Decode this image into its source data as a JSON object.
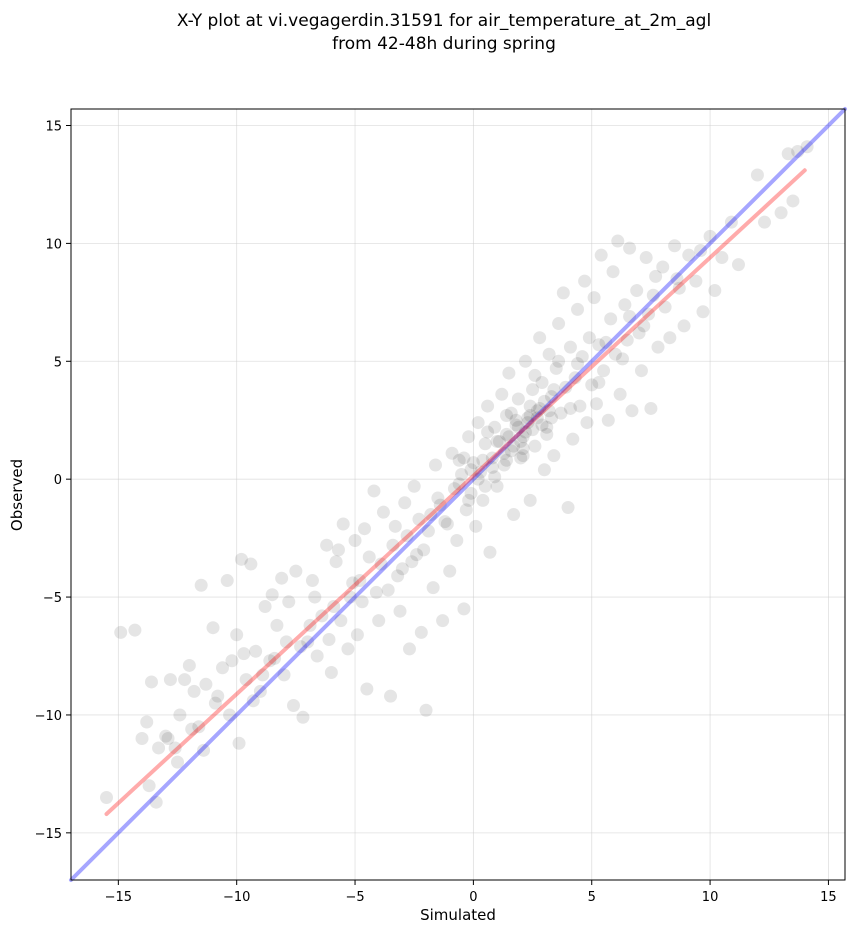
{
  "chart_data": {
    "type": "scatter",
    "title_line1": "X-Y plot at vi.vegagerdin.31591 for air_temperature_at_2m_agl",
    "title_line2": "from 42-48h during spring",
    "xlabel": "Simulated",
    "ylabel": "Observed",
    "xlim": [
      -17,
      15.7
    ],
    "ylim": [
      -17,
      15.7
    ],
    "xticks": [
      -15,
      -10,
      -5,
      0,
      5,
      10,
      15
    ],
    "yticks": [
      -15,
      -10,
      -5,
      0,
      5,
      10,
      15
    ],
    "tick_labels": [
      "−15",
      "−10",
      "−5",
      "0",
      "5",
      "10",
      "15"
    ],
    "grid": true,
    "point_color": "#000000",
    "identity_line": {
      "x": [
        -17,
        15.7
      ],
      "y": [
        -17,
        15.7
      ],
      "color": "#0000ff"
    },
    "fit_line": {
      "x": [
        -15.5,
        14.0
      ],
      "y": [
        -14.2,
        13.1
      ],
      "color": "#ff0000"
    },
    "series": [
      {
        "values": [
          [
            -15.5,
            -13.5
          ],
          [
            -14.9,
            -6.5
          ],
          [
            -14.3,
            -6.4
          ],
          [
            -14.0,
            -11.0
          ],
          [
            -13.8,
            -10.3
          ],
          [
            -13.6,
            -8.6
          ],
          [
            -13.4,
            -13.7
          ],
          [
            -13.3,
            -11.4
          ],
          [
            -13.0,
            -10.9
          ],
          [
            -12.8,
            -8.5
          ],
          [
            -12.6,
            -11.4
          ],
          [
            -12.4,
            -10.0
          ],
          [
            -12.2,
            -8.5
          ],
          [
            -12.0,
            -7.9
          ],
          [
            -11.8,
            -9.0
          ],
          [
            -11.6,
            -10.5
          ],
          [
            -11.5,
            -4.5
          ],
          [
            -11.3,
            -8.7
          ],
          [
            -11.0,
            -6.3
          ],
          [
            -10.8,
            -9.2
          ],
          [
            -10.6,
            -8.0
          ],
          [
            -10.4,
            -4.3
          ],
          [
            -10.2,
            -7.7
          ],
          [
            -10.0,
            -6.6
          ],
          [
            -9.9,
            -11.2
          ],
          [
            -9.8,
            -3.4
          ],
          [
            -9.6,
            -8.5
          ],
          [
            -9.4,
            -3.6
          ],
          [
            -9.2,
            -7.3
          ],
          [
            -9.0,
            -9.0
          ],
          [
            -8.8,
            -5.4
          ],
          [
            -8.6,
            -7.7
          ],
          [
            -8.5,
            -4.9
          ],
          [
            -8.3,
            -6.2
          ],
          [
            -8.1,
            -4.2
          ],
          [
            -8.0,
            -8.3
          ],
          [
            -7.8,
            -5.2
          ],
          [
            -7.6,
            -9.6
          ],
          [
            -7.5,
            -3.9
          ],
          [
            -7.2,
            -10.1
          ],
          [
            -7.0,
            -6.9
          ],
          [
            -6.8,
            -4.3
          ],
          [
            -6.6,
            -7.5
          ],
          [
            -6.4,
            -5.8
          ],
          [
            -6.2,
            -2.8
          ],
          [
            -6.0,
            -8.2
          ],
          [
            -5.8,
            -3.5
          ],
          [
            -5.6,
            -6.0
          ],
          [
            -5.5,
            -1.9
          ],
          [
            -5.3,
            -7.2
          ],
          [
            -5.1,
            -4.4
          ],
          [
            -5.0,
            -2.6
          ],
          [
            -4.9,
            -6.6
          ],
          [
            -4.7,
            -5.2
          ],
          [
            -4.5,
            -8.9
          ],
          [
            -4.4,
            -3.3
          ],
          [
            -4.2,
            -0.5
          ],
          [
            -4.0,
            -6.0
          ],
          [
            -3.8,
            -1.4
          ],
          [
            -3.6,
            -4.7
          ],
          [
            -3.5,
            -9.2
          ],
          [
            -3.3,
            -2.0
          ],
          [
            -3.1,
            -5.6
          ],
          [
            -3.0,
            -3.8
          ],
          [
            -2.9,
            -1.0
          ],
          [
            -2.7,
            -7.2
          ],
          [
            -2.5,
            -0.3
          ],
          [
            -2.4,
            -3.2
          ],
          [
            -2.2,
            -6.5
          ],
          [
            -2.0,
            -9.8
          ],
          [
            -1.9,
            -2.2
          ],
          [
            -1.7,
            -4.6
          ],
          [
            -1.6,
            0.6
          ],
          [
            -1.5,
            -0.8
          ],
          [
            -1.3,
            -6.0
          ],
          [
            -1.2,
            -1.8
          ],
          [
            -1.0,
            -3.9
          ],
          [
            -0.9,
            1.1
          ],
          [
            -0.8,
            -0.4
          ],
          [
            -0.7,
            -2.6
          ],
          [
            -0.5,
            0.2
          ],
          [
            -0.4,
            -5.5
          ],
          [
            -0.3,
            -1.3
          ],
          [
            -0.2,
            1.8
          ],
          [
            -0.1,
            -0.6
          ],
          [
            0.0,
            0.7
          ],
          [
            0.1,
            -2.0
          ],
          [
            0.2,
            2.4
          ],
          [
            0.3,
            0.3
          ],
          [
            0.4,
            -0.9
          ],
          [
            0.5,
            1.5
          ],
          [
            0.6,
            3.1
          ],
          [
            0.7,
            -3.1
          ],
          [
            0.8,
            0.9
          ],
          [
            0.9,
            2.2
          ],
          [
            1.0,
            -0.3
          ],
          [
            1.1,
            1.6
          ],
          [
            1.2,
            3.6
          ],
          [
            1.3,
            0.6
          ],
          [
            1.4,
            2.7
          ],
          [
            1.5,
            4.5
          ],
          [
            1.6,
            1.2
          ],
          [
            1.7,
            -1.5
          ],
          [
            1.8,
            2.3
          ],
          [
            1.9,
            3.4
          ],
          [
            2.0,
            0.9
          ],
          [
            2.1,
            1.8
          ],
          [
            2.2,
            5.0
          ],
          [
            2.3,
            2.6
          ],
          [
            2.4,
            -0.9
          ],
          [
            2.5,
            3.8
          ],
          [
            2.6,
            1.4
          ],
          [
            2.7,
            2.9
          ],
          [
            2.8,
            6.0
          ],
          [
            2.9,
            4.1
          ],
          [
            3.0,
            0.4
          ],
          [
            3.1,
            2.2
          ],
          [
            3.2,
            5.3
          ],
          [
            3.3,
            3.5
          ],
          [
            3.4,
            1.0
          ],
          [
            3.5,
            4.7
          ],
          [
            3.6,
            6.6
          ],
          [
            3.7,
            2.8
          ],
          [
            3.8,
            7.9
          ],
          [
            3.9,
            3.9
          ],
          [
            4.0,
            -1.2
          ],
          [
            4.1,
            5.6
          ],
          [
            4.2,
            1.7
          ],
          [
            4.3,
            4.3
          ],
          [
            4.4,
            7.2
          ],
          [
            4.5,
            3.1
          ],
          [
            4.6,
            5.2
          ],
          [
            4.7,
            8.4
          ],
          [
            4.8,
            2.4
          ],
          [
            4.9,
            6.0
          ],
          [
            5.0,
            4.0
          ],
          [
            5.1,
            7.7
          ],
          [
            5.2,
            3.2
          ],
          [
            5.3,
            5.7
          ],
          [
            5.4,
            9.5
          ],
          [
            5.5,
            4.6
          ],
          [
            5.7,
            2.5
          ],
          [
            5.8,
            6.8
          ],
          [
            5.9,
            8.8
          ],
          [
            6.0,
            5.3
          ],
          [
            6.1,
            10.1
          ],
          [
            6.2,
            3.6
          ],
          [
            6.4,
            7.4
          ],
          [
            6.5,
            5.9
          ],
          [
            6.6,
            9.8
          ],
          [
            6.7,
            2.9
          ],
          [
            6.9,
            8.0
          ],
          [
            7.0,
            6.2
          ],
          [
            7.1,
            4.6
          ],
          [
            7.3,
            9.4
          ],
          [
            7.4,
            7.0
          ],
          [
            7.5,
            3.0
          ],
          [
            7.7,
            8.6
          ],
          [
            7.8,
            5.6
          ],
          [
            8.0,
            9.0
          ],
          [
            8.1,
            7.3
          ],
          [
            8.3,
            6.0
          ],
          [
            8.5,
            9.9
          ],
          [
            8.7,
            8.1
          ],
          [
            8.9,
            6.5
          ],
          [
            9.1,
            9.5
          ],
          [
            9.4,
            8.4
          ],
          [
            9.7,
            7.1
          ],
          [
            10.0,
            10.3
          ],
          [
            10.2,
            8.0
          ],
          [
            10.5,
            9.4
          ],
          [
            10.9,
            10.9
          ],
          [
            11.2,
            9.1
          ],
          [
            12.0,
            12.9
          ],
          [
            12.3,
            10.9
          ],
          [
            13.0,
            11.3
          ],
          [
            13.3,
            13.8
          ],
          [
            13.5,
            11.8
          ],
          [
            13.7,
            13.9
          ],
          [
            14.1,
            14.1
          ],
          [
            -13.7,
            -13.0
          ],
          [
            -12.9,
            -11.0
          ],
          [
            -11.9,
            -10.6
          ],
          [
            -10.9,
            -9.5
          ],
          [
            -9.7,
            -7.4
          ],
          [
            -8.9,
            -8.3
          ],
          [
            -7.9,
            -6.9
          ],
          [
            -6.9,
            -6.2
          ],
          [
            -5.9,
            -5.4
          ],
          [
            -4.8,
            -4.3
          ],
          [
            -3.9,
            -3.6
          ],
          [
            -2.8,
            -2.4
          ],
          [
            -1.8,
            -1.5
          ],
          [
            -0.6,
            -0.2
          ],
          [
            0.4,
            0.8
          ],
          [
            1.4,
            1.9
          ],
          [
            2.4,
            2.7
          ],
          [
            3.4,
            3.8
          ],
          [
            4.4,
            4.9
          ],
          [
            5.6,
            5.8
          ],
          [
            6.6,
            6.9
          ],
          [
            7.6,
            7.8
          ],
          [
            8.6,
            8.5
          ],
          [
            9.6,
            9.7
          ],
          [
            -3.2,
            -4.1
          ],
          [
            -2.1,
            -3.0
          ],
          [
            -1.1,
            -1.9
          ],
          [
            -0.2,
            -0.9
          ],
          [
            0.9,
            0.1
          ],
          [
            2.1,
            1.0
          ],
          [
            3.1,
            1.9
          ],
          [
            4.1,
            3.0
          ],
          [
            5.3,
            4.1
          ],
          [
            6.3,
            5.1
          ],
          [
            7.2,
            6.5
          ],
          [
            1.6,
            2.8
          ],
          [
            2.6,
            4.4
          ],
          [
            3.6,
            5.0
          ],
          [
            0.6,
            2.0
          ],
          [
            -0.4,
            0.9
          ],
          [
            1.9,
            2.2
          ],
          [
            2.0,
            1.6
          ],
          [
            2.2,
            2.0
          ],
          [
            1.7,
            1.4
          ],
          [
            2.3,
            2.4
          ],
          [
            2.5,
            2.1
          ],
          [
            1.5,
            1.8
          ],
          [
            2.7,
            2.6
          ],
          [
            1.8,
            2.5
          ],
          [
            2.1,
            1.3
          ],
          [
            2.8,
            3.0
          ],
          [
            3.0,
            3.3
          ],
          [
            1.3,
            1.1
          ],
          [
            1.0,
            1.6
          ],
          [
            0.8,
            0.5
          ],
          [
            3.2,
            2.9
          ],
          [
            2.9,
            2.3
          ],
          [
            1.4,
            0.8
          ],
          [
            2.4,
            3.1
          ],
          [
            3.3,
            2.6
          ],
          [
            -0.1,
            0.4
          ],
          [
            0.2,
            0.0
          ],
          [
            0.5,
            -0.3
          ],
          [
            -0.6,
            0.8
          ],
          [
            -1.4,
            -1.1
          ],
          [
            -2.3,
            -1.7
          ],
          [
            -2.6,
            -3.5
          ],
          [
            -3.4,
            -2.8
          ],
          [
            -4.1,
            -4.8
          ],
          [
            -5.2,
            -5.0
          ],
          [
            -6.1,
            -6.8
          ],
          [
            -7.3,
            -7.1
          ],
          [
            -8.4,
            -7.6
          ],
          [
            -9.3,
            -9.4
          ],
          [
            -10.3,
            -10.0
          ],
          [
            -11.4,
            -11.5
          ],
          [
            -12.5,
            -12.0
          ],
          [
            -6.7,
            -5.0
          ],
          [
            -5.7,
            -3.0
          ],
          [
            -4.6,
            -2.1
          ]
        ]
      }
    ]
  }
}
